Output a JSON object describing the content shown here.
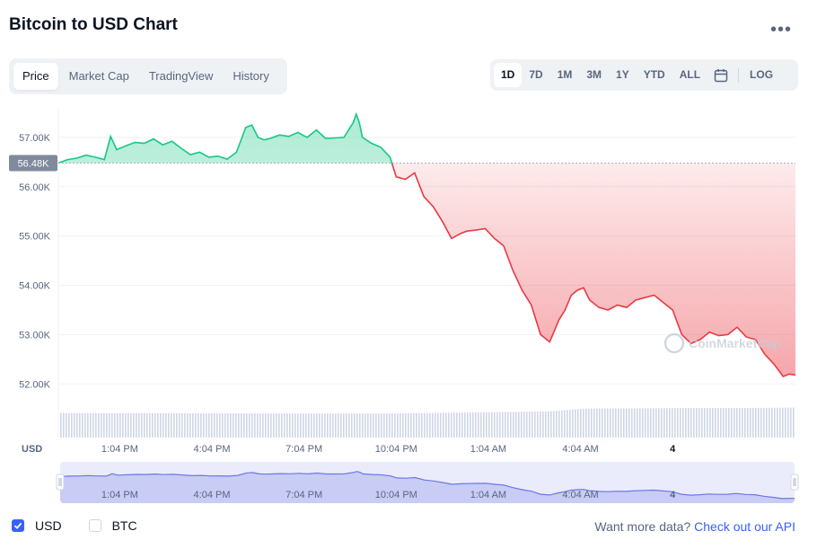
{
  "header": {
    "title": "Bitcoin to USD Chart",
    "more_icon": "more-dots-icon"
  },
  "tabs": [
    {
      "label": "Price",
      "active": true
    },
    {
      "label": "Market Cap",
      "active": false
    },
    {
      "label": "TradingView",
      "active": false
    },
    {
      "label": "History",
      "active": false
    }
  ],
  "ranges": [
    {
      "label": "1D",
      "active": true
    },
    {
      "label": "7D",
      "active": false
    },
    {
      "label": "1M",
      "active": false
    },
    {
      "label": "3M",
      "active": false
    },
    {
      "label": "1Y",
      "active": false
    },
    {
      "label": "YTD",
      "active": false
    },
    {
      "label": "ALL",
      "active": false
    }
  ],
  "calendar_icon": "calendar-icon",
  "log_label": "LOG",
  "colors": {
    "up": "#16c784",
    "down": "#ea3943",
    "accent": "#3861fb",
    "navigator": "#6b78e4"
  },
  "currency_label": "USD",
  "watermark": "CoinMarketCap",
  "legend": {
    "usd": "USD",
    "btc": "BTC",
    "usd_checked": true,
    "btc_checked": false
  },
  "footer": {
    "prefix": "Want more data?",
    "link": "Check out our API"
  },
  "chart_data": {
    "type": "line",
    "title": "Bitcoin to USD Chart",
    "ylabel": "",
    "xlabel": "",
    "y_ticks": [
      "57.00K",
      "56.00K",
      "55.00K",
      "54.00K",
      "53.00K",
      "52.00K"
    ],
    "y_tick_values": [
      57000,
      56000,
      55000,
      54000,
      53000,
      52000
    ],
    "ylim": [
      51950,
      57600
    ],
    "reference_price": 56480,
    "reference_label": "56.48K",
    "x_ticks": [
      "1:04 PM",
      "4:04 PM",
      "7:04 PM",
      "10:04 PM",
      "1:04 AM",
      "4:04 AM",
      "4"
    ],
    "x_tick_hours": [
      2,
      5,
      8,
      11,
      14,
      17,
      20
    ],
    "xlim_hours": [
      0,
      24
    ],
    "series": [
      {
        "x_hours": [
          0,
          0.3,
          0.6,
          0.9,
          1.2,
          1.5,
          1.7,
          1.9,
          2.2,
          2.5,
          2.8,
          3.1,
          3.4,
          3.7,
          4.0,
          4.3,
          4.6,
          4.9,
          5.2,
          5.5,
          5.8,
          6.1,
          6.3,
          6.5,
          6.7,
          6.9,
          7.2,
          7.5,
          7.8,
          8.1,
          8.4,
          8.7,
          9.0,
          9.3,
          9.6,
          9.7,
          9.8,
          9.9,
          10.2,
          10.5,
          10.8,
          11.0,
          11.3,
          11.6,
          11.9,
          12.2,
          12.5,
          12.8,
          13.1,
          13.3,
          13.6,
          13.9,
          14.2,
          14.5,
          14.8,
          15.1,
          15.4,
          15.7,
          16.0,
          16.3,
          16.5,
          16.7,
          16.9,
          17.1,
          17.3,
          17.6,
          17.9,
          18.2,
          18.5,
          18.8,
          19.1,
          19.4,
          19.7,
          20.0,
          20.3,
          20.6,
          20.9,
          21.2,
          21.5,
          21.8,
          22.1,
          22.4,
          22.7,
          23.0,
          23.3,
          23.6,
          23.8,
          24.0
        ],
        "values": [
          56480,
          56550,
          56580,
          56640,
          56600,
          56550,
          57020,
          56750,
          56830,
          56900,
          56880,
          56970,
          56850,
          56920,
          56780,
          56650,
          56700,
          56600,
          56620,
          56560,
          56700,
          57200,
          57250,
          57000,
          56950,
          56980,
          57050,
          57020,
          57100,
          57000,
          57150,
          56980,
          56990,
          57000,
          57300,
          57470,
          57300,
          57000,
          56880,
          56800,
          56600,
          56200,
          56150,
          56280,
          55800,
          55600,
          55300,
          54950,
          55050,
          55100,
          55120,
          55150,
          54950,
          54800,
          54300,
          53900,
          53600,
          53000,
          52850,
          53300,
          53500,
          53800,
          53900,
          53950,
          53700,
          53550,
          53500,
          53600,
          53550,
          53700,
          53750,
          53800,
          53650,
          53500,
          53000,
          52820,
          52900,
          53050,
          52980,
          53000,
          53150,
          52950,
          52900,
          52600,
          52400,
          52150,
          52200,
          52180
        ]
      }
    ],
    "volume": {
      "x_hours": [
        0,
        10,
        12,
        14,
        16,
        17,
        18,
        20,
        22,
        24
      ],
      "values": [
        0.58,
        0.57,
        0.58,
        0.6,
        0.62,
        0.68,
        0.69,
        0.7,
        0.7,
        0.71
      ]
    }
  }
}
